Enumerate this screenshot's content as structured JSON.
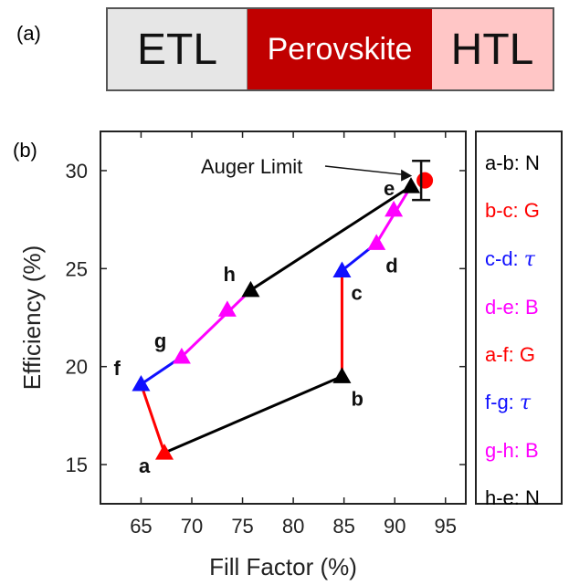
{
  "panel_a": {
    "label": "(a)",
    "layers": {
      "etl": "ETL",
      "perovskite": "Perovskite",
      "htl": "HTL"
    },
    "colors": {
      "etl": "#e6e6e6",
      "perovskite": "#c00000",
      "htl": "#ffc6c6"
    }
  },
  "panel_b_label": "(b)",
  "chart_data": {
    "type": "line",
    "title": "",
    "xlabel": "Fill Factor (%)",
    "ylabel": "Efficiency (%)",
    "xlim": [
      61,
      97
    ],
    "ylim": [
      13,
      32
    ],
    "xticks": [
      65,
      70,
      75,
      80,
      85,
      90,
      95
    ],
    "yticks": [
      15,
      20,
      25,
      30
    ],
    "grid": false,
    "points": [
      {
        "name": "a",
        "x": 67.3,
        "y": 15.6,
        "color": "#ff0000",
        "label_pos": "below-left"
      },
      {
        "name": "b",
        "x": 84.8,
        "y": 19.5,
        "color": "#000000",
        "label_pos": "below-right"
      },
      {
        "name": "c",
        "x": 84.8,
        "y": 24.9,
        "color": "#1010ff",
        "label_pos": "below-right"
      },
      {
        "name": "d",
        "x": 88.2,
        "y": 26.3,
        "color": "#ff00ff",
        "label_pos": "below-right"
      },
      {
        "name": "e",
        "x": 91.6,
        "y": 29.2,
        "color": "#000000",
        "label_pos": "left"
      },
      {
        "name": "f",
        "x": 65.0,
        "y": 19.1,
        "color": "#1010ff",
        "label_pos": "upper-left"
      },
      {
        "name": "g",
        "x": 69.0,
        "y": 20.5,
        "color": "#ff00ff",
        "label_pos": "upper-left"
      },
      {
        "name": "h",
        "x": 75.8,
        "y": 23.9,
        "color": "#000000",
        "label_pos": "upper-left"
      }
    ],
    "intermediate_markers": [
      {
        "x": 89.9,
        "y": 28.0,
        "color": "#ff00ff"
      },
      {
        "x": 73.5,
        "y": 22.9,
        "color": "#ff00ff"
      }
    ],
    "segments": [
      {
        "from": "a",
        "to": "b",
        "color": "#000000"
      },
      {
        "from": "b",
        "to": "c",
        "color": "#ff0000"
      },
      {
        "from": "c",
        "to": "d",
        "color": "#1010ff"
      },
      {
        "from": "d",
        "to": "e",
        "color": "#ff00ff"
      },
      {
        "from": "a",
        "to": "f",
        "color": "#ff0000"
      },
      {
        "from": "f",
        "to": "g",
        "color": "#1010ff"
      },
      {
        "from": "g",
        "to": "h",
        "color": "#ff00ff"
      },
      {
        "from": "h",
        "to": "e",
        "color": "#000000"
      }
    ],
    "auger_limit": {
      "label": "Auger Limit",
      "x": 92.6,
      "y": 29.5,
      "y_err": [
        28.5,
        30.5
      ],
      "color": "#ff0000"
    },
    "legend": {
      "placement": "right",
      "entries": [
        {
          "text": "a-b: N",
          "color": "#000000",
          "symbol": ""
        },
        {
          "text": "b-c: G",
          "color": "#ff0000",
          "symbol": ""
        },
        {
          "text": "c-d: ",
          "color": "#1010ff",
          "symbol": "τ"
        },
        {
          "text": "d-e: B",
          "color": "#ff00ff",
          "symbol": ""
        },
        {
          "text": "a-f: G",
          "color": "#ff0000",
          "symbol": ""
        },
        {
          "text": "f-g: ",
          "color": "#1010ff",
          "symbol": "τ"
        },
        {
          "text": "g-h: B",
          "color": "#ff00ff",
          "symbol": ""
        },
        {
          "text": "h-e: N",
          "color": "#000000",
          "symbol": ""
        }
      ]
    }
  }
}
